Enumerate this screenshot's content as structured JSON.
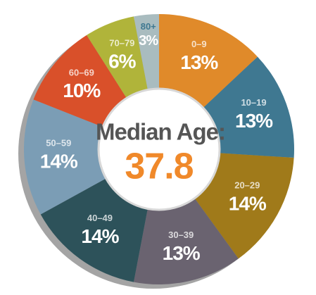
{
  "chart_data": {
    "type": "donut",
    "categories": [
      "0–9",
      "10–19",
      "20–29",
      "30–39",
      "40–49",
      "50–59",
      "60–69",
      "70–79",
      "80+"
    ],
    "values": [
      13,
      13,
      14,
      13,
      14,
      14,
      10,
      6,
      3
    ],
    "value_labels": [
      "13%",
      "13%",
      "14%",
      "13%",
      "14%",
      "14%",
      "10%",
      "6%",
      "3%"
    ],
    "colors": [
      "#e08a2a",
      "#3f7891",
      "#a07a1a",
      "#6a6370",
      "#2d525a",
      "#7b9db5",
      "#d9502a",
      "#b0b43a",
      "#a9bcbf"
    ],
    "center_title": "Median Age:",
    "center_text": "37.8"
  }
}
